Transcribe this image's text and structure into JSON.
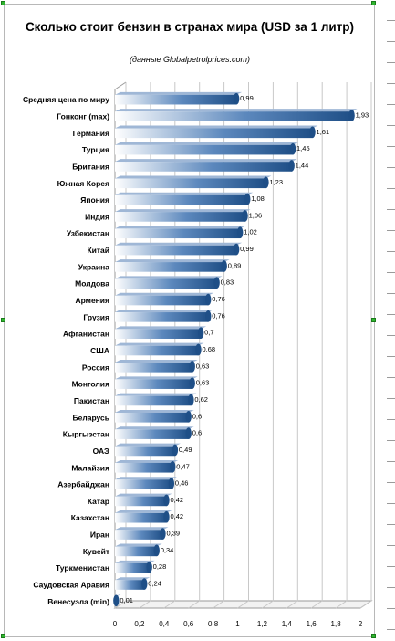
{
  "chart_data": {
    "type": "bar",
    "orientation": "horizontal",
    "title": "Сколько стоит бензин в странах мира (USD за 1 литр)",
    "subtitle": "(данные Globalpetrolprices.com)",
    "categories": [
      "Средняя цена по миру",
      "Гонконг (max)",
      "Германия",
      "Турция",
      "Британия",
      "Южная Корея",
      "Япония",
      "Индия",
      "Узбекистан",
      "Китай",
      "Украина",
      "Молдова",
      "Армения",
      "Грузия",
      "Афганистан",
      "США",
      "Россия",
      "Монголия",
      "Пакистан",
      "Беларусь",
      "Кыргызстан",
      "ОАЭ",
      "Малайзия",
      "Азербайджан",
      "Катар",
      "Казахстан",
      "Иран",
      "Кувейт",
      "Туркменистан",
      "Саудовская Аравия",
      "Венесуэла (min)"
    ],
    "values": [
      0.99,
      1.93,
      1.61,
      1.45,
      1.44,
      1.23,
      1.08,
      1.06,
      1.02,
      0.99,
      0.89,
      0.83,
      0.76,
      0.76,
      0.7,
      0.68,
      0.63,
      0.63,
      0.62,
      0.6,
      0.6,
      0.49,
      0.47,
      0.46,
      0.42,
      0.42,
      0.39,
      0.34,
      0.28,
      0.24,
      0.01
    ],
    "value_labels": [
      "0,99",
      "1,93",
      "1,61",
      "1,45",
      "1,44",
      "1,23",
      "1,08",
      "1,06",
      "1,02",
      "0,99",
      "0,89",
      "0,83",
      "0,76",
      "0,76",
      "0,7",
      "0,68",
      "0,63",
      "0,63",
      "0,62",
      "0,6",
      "0,6",
      "0,49",
      "0,47",
      "0,46",
      "0,42",
      "0,42",
      "0,39",
      "0,34",
      "0,28",
      "0,24",
      "0,01"
    ],
    "xlim": [
      0,
      2
    ],
    "xticks": [
      0,
      0.2,
      0.4,
      0.6,
      0.8,
      1,
      1.2,
      1.4,
      1.6,
      1.8,
      2
    ],
    "xtick_labels": [
      "0",
      "0,2",
      "0,4",
      "0,6",
      "0,8",
      "1",
      "1,2",
      "1,4",
      "1,6",
      "1,8",
      "2"
    ],
    "grid": true,
    "legend": "none",
    "colors": {
      "bar_dark": "#1f4f87",
      "bar_light": "#ffffff",
      "grid": "#c8c8c8",
      "wall": "#9a9a9a"
    }
  }
}
